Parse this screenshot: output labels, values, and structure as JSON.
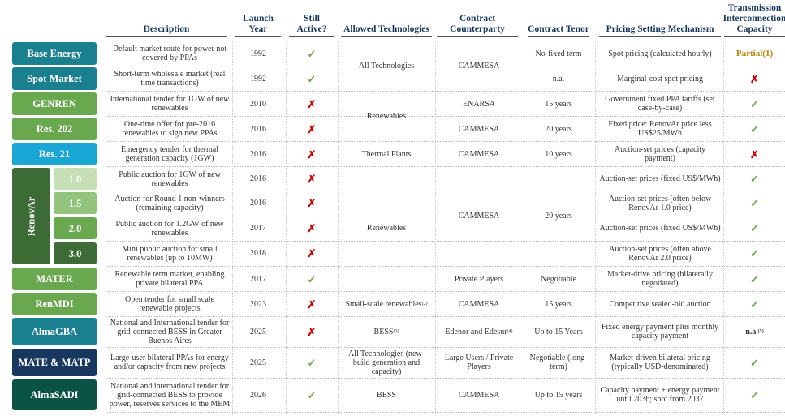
{
  "headers": {
    "description": "Description",
    "launch_year": "Launch Year",
    "still_active": "Still Active?",
    "allowed_tech": "Allowed Technologies",
    "counterparty": "Contract Counterparty",
    "tenor": "Contract Tenor",
    "pricing": "Pricing Setting Mechanism",
    "transmission": "Transmission Interconnection Capacity"
  },
  "renovar_label": "RenovAr",
  "rows": [
    {
      "name": "Base Energy",
      "desc": "Default market route for power not covered by PPAs",
      "year": "1992",
      "active": "✓",
      "pricing": "Spot pricing (calculated hourly)",
      "trans": "Partial",
      "trans_sup": "(1)"
    },
    {
      "name": "Spot Market",
      "desc": "Short-term wholesale market (real time transactions)",
      "year": "1992",
      "active": "✓",
      "pricing": "Marginal-cost spot pricing",
      "trans": "✗"
    },
    {
      "name": "GENREN",
      "desc": "International tender for 1GW of new renewables",
      "year": "2010",
      "active": "✗",
      "pricing": "Government fixed PPA tariffs (set case-by-case)",
      "trans": "✓"
    },
    {
      "name": "Res. 202",
      "desc": "One-time offer for pre-2016 renewables to sign new PPAs",
      "year": "2016",
      "active": "✗",
      "pricing": "Fixed price: RenovAr price less US$25/MWh",
      "trans": "✓"
    },
    {
      "name": "Res. 21",
      "desc": "Emergency tender for thermal generation capacity (1GW)",
      "year": "2016",
      "active": "✗",
      "pricing": "Auction-set prices (capacity payment)",
      "trans": "✗"
    },
    {
      "name": "1.0",
      "desc": "Public auction for 1GW of new renewables",
      "year": "2016",
      "active": "✗",
      "pricing": "Auction-set prices (fixed US$/MWh)",
      "trans": "✓"
    },
    {
      "name": "1.5",
      "desc": "Auction for Round 1 non-winners (remaining capacity)",
      "year": "2016",
      "active": "✗",
      "pricing": "Auction-set prices (often below RenovAr 1.0 price)",
      "trans": "✓"
    },
    {
      "name": "2.0",
      "desc": "Public auction for 1.2GW of new renewables",
      "year": "2017",
      "active": "✗",
      "pricing": "Auction-set prices (fixed US$/MWh)",
      "trans": "✓"
    },
    {
      "name": "3.0",
      "desc": "Mini public auction for small renewables (up to 10MW)",
      "year": "2018",
      "active": "✗",
      "pricing": "Auction-set prices (often above RenovAr 2.0 price)",
      "trans": "✓"
    },
    {
      "name": "MATER",
      "desc": "Renewable term market, enabling private bilateral PPA",
      "year": "2017",
      "active": "✓",
      "tech": "",
      "cpty": "Private Players",
      "tenor": "Negotiable",
      "pricing": "Market-drive pricing (bilaterally negotiated)",
      "trans": "✓"
    },
    {
      "name": "RenMDI",
      "desc": "Open tender for small scale renewable projects",
      "year": "2023",
      "active": "✗",
      "tech": "Small-scale renewables",
      "tech_sup": "(2)",
      "cpty": "CAMMESA",
      "tenor": "15 years",
      "pricing": "Competitive sealed-bid auction",
      "trans": "✓"
    },
    {
      "name": "AlmaGBA",
      "desc": "National and International tender for grid-connected BESS in Greater Buenos Aires",
      "year": "2025",
      "active": "✗",
      "tech": "BESS",
      "tech_sup": "(3)",
      "cpty": "Edenor and Edesur",
      "cpty_sup": "(4)",
      "tenor": "Up to 15 Years",
      "pricing": "Fixed energy payment plus monthly capacity payment",
      "trans": "n.a.",
      "trans_sup": "(5)"
    },
    {
      "name": "MATE & MATP",
      "desc": "Large-user bilateral PPAs for energy and/or capacity from new projects",
      "year": "2025",
      "active": "✓",
      "tech": "All Technologies (new-build generation and capacity)",
      "cpty": "Large Users / Private Players",
      "tenor": "Negotiable (long-term)",
      "pricing": "Market-driven bilateral pricing (typically USD-denominated)",
      "trans": "✓"
    },
    {
      "name": "AlmaSADI",
      "desc": "National and international tender for grid-connected BESS to provide power, reserves services to the MEM",
      "year": "2026",
      "active": "✓",
      "tech": "BESS",
      "cpty": "CAMMESA",
      "tenor": "Up to 15 years",
      "pricing": "Capacity payment + energy payment until 2036; spot from 2037",
      "trans": "✓"
    }
  ],
  "merged": {
    "tech_all": "All Technologies",
    "cpty_cammesa_top": "CAMMESA",
    "tenor_nofixed": "No-fixed term",
    "tenor_na": "n.a.",
    "tech_renew_top": "Renewables",
    "cpty_enarsa": "ENARSA",
    "tenor_15": "15 years",
    "cpty_cammesa_202": "CAMMESA",
    "tenor_20": "20 years",
    "tech_thermal": "Thermal Plants",
    "cpty_cammesa_21": "CAMMESA",
    "tenor_10": "10 years",
    "tech_renew_renovar": "Renewables",
    "cpty_cammesa_renovar": "CAMMESA",
    "tenor_20_renovar": "20 years"
  },
  "colors": {
    "teal": "#1a7f8e",
    "blue": "#1aa7d6",
    "green": "#6aa84f",
    "dark_green": "#3d6b35",
    "navy": "#17375e",
    "check": "#6aa84f",
    "cross": "#cc0000"
  }
}
